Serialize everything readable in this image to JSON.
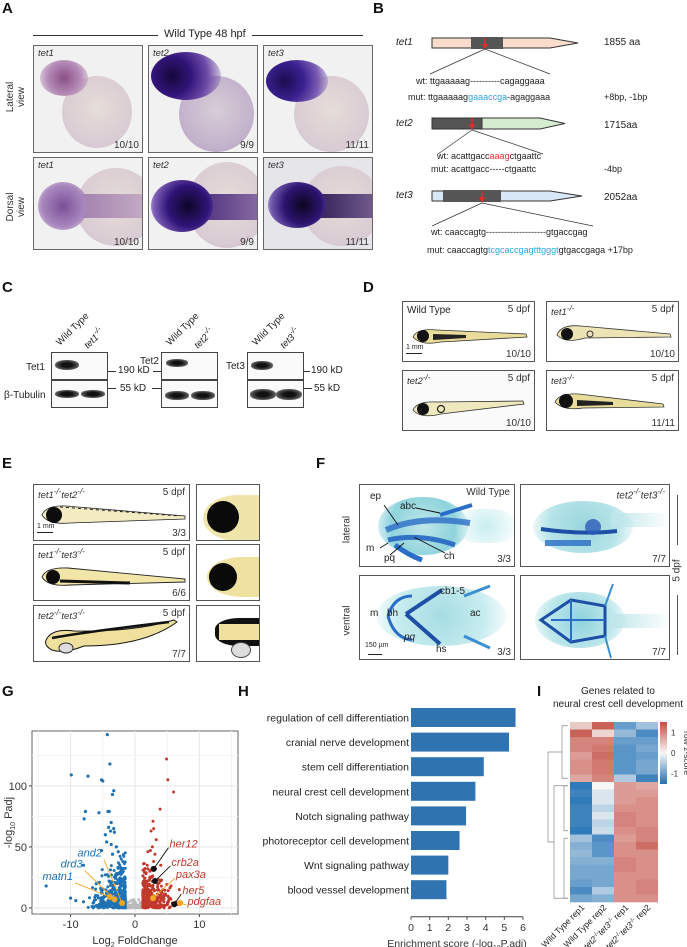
{
  "panels": {
    "A": {
      "label": "A",
      "header": "Wild Type 48 hpf",
      "row_labels": [
        [
          "Lateral",
          "view"
        ],
        [
          "Dorsal",
          "view"
        ]
      ],
      "cells": [
        {
          "gene": "tet1",
          "count": "10/10"
        },
        {
          "gene": "tet2",
          "count": "9/9"
        },
        {
          "gene": "tet3",
          "count": "11/11"
        },
        {
          "gene": "tet1",
          "count": "10/10"
        },
        {
          "gene": "tet2",
          "count": "9/9"
        },
        {
          "gene": "tet3",
          "count": "11/11"
        }
      ]
    },
    "B": {
      "label": "B",
      "genes": [
        {
          "name": "tet1",
          "length": "1855 aa",
          "wt_prefix": "wt: ",
          "wt_a": "ttgaaaaag",
          "wt_b": "----------",
          "wt_c": "cagaggaaa",
          "mut_prefix": "mut: ",
          "mut_a": "ttgaaaaag",
          "mut_b": "gaaaccga",
          "mut_c": "-agaggaaa",
          "change": "+8bp, -1bp"
        },
        {
          "name": "tet2",
          "length": "1715aa",
          "wt_prefix": "wt: ",
          "wt_a": "acattgacc",
          "wt_b": "aaag",
          "wt_c": "ctgaattc",
          "mut_prefix": "mut: ",
          "mut_a": "acattgacc",
          "mut_b": "-----",
          "mut_c": "ctgaattc",
          "change": "-4bp"
        },
        {
          "name": "tet3",
          "length": "2052aa",
          "wt_prefix": "wt: ",
          "wt_a": "caaccagtg",
          "wt_b": "--------------------",
          "wt_c": "gtgaccgag",
          "mut_prefix": "mut: ",
          "mut_a": "caaccagtg",
          "mut_b": "tcgcaccgagtttgggt",
          "mut_c": "gtgaccgaga",
          "change": "+17bp"
        }
      ]
    },
    "C": {
      "label": "C",
      "blots": [
        {
          "lane1": "Wild Type",
          "lane2": "tet1",
          "sup": "-/-",
          "protein": "Tet1",
          "marker": "190 kD"
        },
        {
          "lane1": "Wild Type",
          "lane2": "tet2",
          "sup": "-/-",
          "protein": "Tet2",
          "marker": "190 kD"
        },
        {
          "lane1": "Wild Type",
          "lane2": "tet3",
          "sup": "-/-",
          "protein": "Tet3",
          "marker": "190 kD"
        }
      ],
      "loading_control": "β-Tubulin",
      "loading_marker": "55 kD"
    },
    "D": {
      "label": "D",
      "cells": [
        {
          "genotype": "Wild Type",
          "sup": "",
          "italic": false,
          "age": "5 dpf",
          "count": "10/10",
          "scale": "1 mm"
        },
        {
          "genotype": "tet1",
          "sup": "-/-",
          "italic": true,
          "age": "5 dpf",
          "count": "10/10"
        },
        {
          "genotype": "tet2",
          "sup": "-/-",
          "italic": true,
          "age": "5 dpf",
          "count": "10/10"
        },
        {
          "genotype": "tet3",
          "sup": "-/-",
          "italic": true,
          "age": "5 dpf",
          "count": "11/11"
        }
      ]
    },
    "E": {
      "label": "E",
      "rows": [
        {
          "g1": "tet1",
          "g2": "tet2",
          "sup": "-/-",
          "age": "5 dpf",
          "count": "3/3",
          "scale": "1 mm"
        },
        {
          "g1": "tet1",
          "g2": "tet3",
          "sup": "-/-",
          "age": "5 dpf",
          "count": "6/6"
        },
        {
          "g1": "tet2",
          "g2": "tet3",
          "sup": "-/-",
          "age": "5 dpf",
          "count": "7/7"
        }
      ]
    },
    "F": {
      "label": "F",
      "row_labels": [
        "lateral",
        "ventral"
      ],
      "side_label": "5 dpf",
      "wt_title": "Wild Type",
      "mut_g1": "tet2",
      "mut_g2": "tet3",
      "mut_sup": "-/-",
      "lateral_annotations": [
        "ep",
        "abc",
        "m",
        "pq",
        "ch"
      ],
      "ventral_annotations": [
        "m",
        "bh",
        "cb1-5",
        "ac",
        "pq",
        "hs"
      ],
      "scale": "150 µm",
      "counts": [
        "3/3",
        "7/7",
        "3/3",
        "7/7"
      ]
    },
    "G": {
      "label": "G"
    },
    "H": {
      "label": "H"
    },
    "I": {
      "label": "I"
    }
  },
  "chart_data": [
    {
      "panel": "G",
      "type": "scatter",
      "title": "",
      "xlabel": "Log2 FoldChange",
      "ylabel": "-log10 Padj",
      "xlim": [
        -16,
        16
      ],
      "ylim": [
        -5,
        145
      ],
      "xticks": [
        -10,
        0,
        10
      ],
      "yticks": [
        0,
        50,
        100
      ],
      "grid": true,
      "colors": {
        "down": "#1f72b4",
        "up": "#c0392b",
        "ns": "#bbbbbb",
        "highlight_down": "#f5a623",
        "highlight_up_black": "#111111"
      },
      "series": [
        {
          "name": "down",
          "points": [
            [
              -4.3,
              142
            ],
            [
              -3.9,
              118
            ],
            [
              -9.9,
              109
            ],
            [
              -7.3,
              108
            ],
            [
              -5.2,
              105
            ],
            [
              -5,
              104
            ],
            [
              -3.3,
              96
            ],
            [
              -3.5,
              93
            ],
            [
              -7.7,
              79
            ],
            [
              -5.6,
              78
            ],
            [
              -4,
              79
            ],
            [
              -4.2,
              79
            ],
            [
              -7.9,
              73
            ],
            [
              -3.7,
              70
            ],
            [
              -4.1,
              66
            ],
            [
              -3.3,
              65
            ],
            [
              -3.8,
              63
            ],
            [
              -4.6,
              60
            ],
            [
              -3.2,
              62
            ],
            [
              -4.4,
              54
            ],
            [
              -3.7,
              52
            ],
            [
              -5.2,
              47
            ],
            [
              -2.9,
              50
            ],
            [
              -8,
              35
            ],
            [
              -13.8,
              18
            ],
            [
              -10,
              8
            ],
            [
              -9.2,
              6
            ],
            [
              -8,
              5
            ],
            [
              -6.5,
              4
            ],
            [
              -5.8,
              10
            ],
            [
              -3.5,
              44
            ],
            [
              -2.6,
              46
            ]
          ]
        },
        {
          "name": "up",
          "points": [
            [
              4.9,
              122
            ],
            [
              5.1,
              105
            ],
            [
              6,
              95
            ],
            [
              3.9,
              81
            ],
            [
              2.8,
              71
            ],
            [
              2.9,
              65
            ],
            [
              2.5,
              63
            ],
            [
              3.3,
              56
            ],
            [
              2.7,
              50
            ],
            [
              2.4,
              47
            ],
            [
              3.1,
              44
            ],
            [
              2,
              46
            ],
            [
              1.9,
              35
            ],
            [
              2,
              32
            ],
            [
              2.3,
              30
            ],
            [
              2.6,
              25
            ],
            [
              3.8,
              23
            ],
            [
              5.6,
              18
            ],
            [
              3.2,
              32
            ],
            [
              2.9,
              38
            ],
            [
              4,
              35
            ],
            [
              1.7,
              28
            ]
          ]
        },
        {
          "name": "labeled_down",
          "points": [
            {
              "gene": "and2",
              "x": -2,
              "y": 4
            },
            {
              "gene": "drd3",
              "x": -3.2,
              "y": 7
            },
            {
              "gene": "matn1",
              "x": -3.9,
              "y": 9
            }
          ]
        },
        {
          "name": "labeled_up",
          "points": [
            {
              "gene": "her12",
              "x": 2.9,
              "y": 32,
              "color": "black"
            },
            {
              "gene": "crb2a",
              "x": 3.1,
              "y": 22,
              "color": "black"
            },
            {
              "gene": "pax3a",
              "x": 2.8,
              "y": 8,
              "color": "orange"
            },
            {
              "gene": "her5",
              "x": 6.1,
              "y": 3,
              "color": "black"
            },
            {
              "gene": "pdgfaa",
              "x": 7,
              "y": 4,
              "color": "orange"
            }
          ]
        }
      ]
    },
    {
      "panel": "H",
      "type": "bar",
      "orientation": "horizontal",
      "xlabel": "Enrichment score (-log10P.adj)",
      "xlim": [
        0,
        6
      ],
      "xticks": [
        0,
        1,
        2,
        3,
        4,
        5,
        6
      ],
      "color": "#2f74b0",
      "categories": [
        "regulation of cell differentiation",
        "cranial nerve development",
        "stem cell differentiation",
        "neural crest cell development",
        "Notch signaling pathway",
        "photoreceptor cell development",
        "Wnt signaling pathway",
        "blood vessel development"
      ],
      "values": [
        5.6,
        5.25,
        3.9,
        3.45,
        2.95,
        2.6,
        2.0,
        1.9
      ]
    },
    {
      "panel": "I",
      "type": "heatmap",
      "title": "Genes related to neural crest cell development",
      "legend_title": "row z-score",
      "legend_ticks": [
        1,
        0,
        -1
      ],
      "zlim": [
        -1.5,
        1.5
      ],
      "columns": [
        "Wild Type rep1",
        "Wild Type rep2",
        "tet2-/-tet3-/- rep1",
        "tet2-/-tet3-/- rep2"
      ],
      "rows": [
        [
          0.4,
          1.3,
          -1.0,
          -0.6
        ],
        [
          1.3,
          0.3,
          -0.7,
          -1.2
        ],
        [
          1.0,
          1.0,
          -1.0,
          -1.0
        ],
        [
          1.0,
          1.1,
          -1.1,
          -0.9
        ],
        [
          0.8,
          1.2,
          -1.1,
          -1.0
        ],
        [
          0.9,
          1.1,
          -1.1,
          -0.9
        ],
        [
          0.9,
          1.1,
          -1.1,
          -0.9
        ],
        [
          0.7,
          1.0,
          -0.5,
          -1.3
        ],
        [
          -1.4,
          0.0,
          0.8,
          0.7
        ],
        [
          -1.3,
          -0.2,
          0.8,
          0.8
        ],
        [
          -1.4,
          -0.2,
          0.8,
          0.9
        ],
        [
          -1.3,
          -0.4,
          0.9,
          0.9
        ],
        [
          -1.3,
          -0.2,
          1.0,
          0.9
        ],
        [
          -1.3,
          -0.4,
          1.0,
          0.9
        ],
        [
          -1.4,
          -0.3,
          0.9,
          1.0
        ],
        [
          -0.6,
          -1.2,
          0.8,
          1.0
        ],
        [
          -0.8,
          -1.1,
          0.9,
          1.2
        ],
        [
          -0.7,
          -1.1,
          0.9,
          0.9
        ],
        [
          -0.8,
          -0.8,
          1.0,
          0.9
        ],
        [
          -0.9,
          -0.9,
          1.0,
          0.9
        ],
        [
          -0.9,
          -0.9,
          0.9,
          0.9
        ],
        [
          -1.0,
          -0.9,
          0.9,
          1.0
        ],
        [
          -1.2,
          -0.5,
          0.9,
          1.0
        ],
        [
          -0.9,
          -0.8,
          0.9,
          0.9
        ]
      ]
    }
  ]
}
